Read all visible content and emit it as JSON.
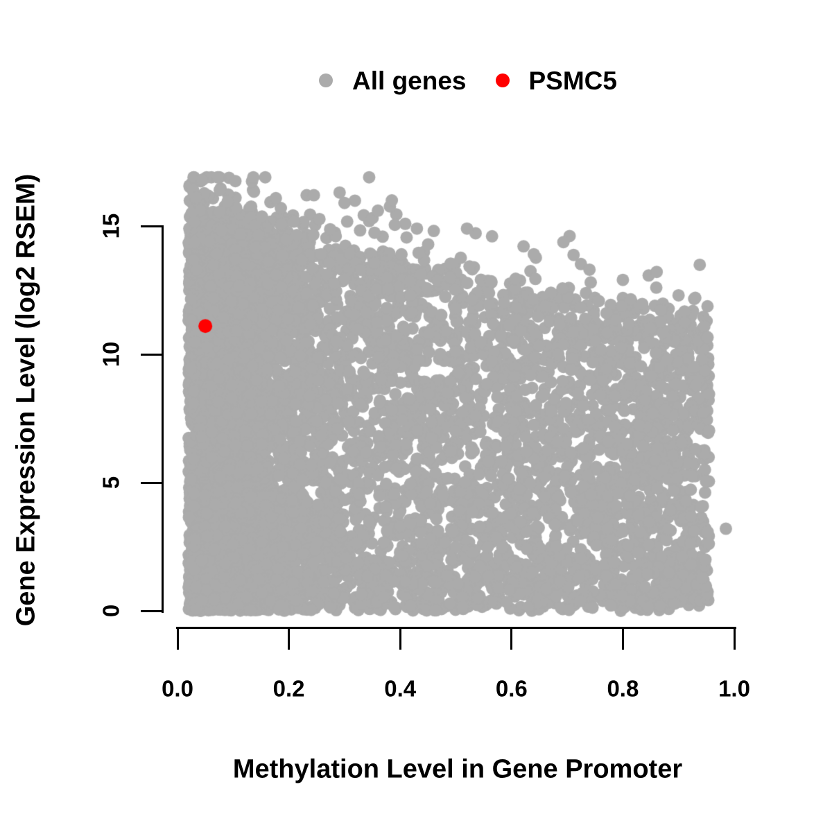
{
  "legend": {
    "items": [
      {
        "label": "All genes",
        "color": "#ababab"
      },
      {
        "label": "PSMC5",
        "color": "#ff0000"
      }
    ]
  },
  "chart_data": {
    "type": "scatter",
    "title": "",
    "xlabel": "Methylation Level in Gene Promoter",
    "ylabel": "Gene Expression Level (log2 RSEM)",
    "xlim": [
      0.0,
      1.0
    ],
    "ylim": [
      0,
      17
    ],
    "grid": false,
    "legend_position": "top-center",
    "x_ticks": {
      "values": [
        0.0,
        0.2,
        0.4,
        0.6,
        0.8,
        1.0
      ],
      "labels": [
        "0.0",
        "0.2",
        "0.4",
        "0.6",
        "0.8",
        "1.0"
      ]
    },
    "y_ticks": {
      "values": [
        0,
        5,
        10,
        15
      ],
      "labels": [
        "0",
        "5",
        "10",
        "15"
      ]
    },
    "series": [
      {
        "name": "All genes",
        "color": "#ababab",
        "marker": "filled-circle",
        "marker_radius_px": 9,
        "point_count_approx": 7200,
        "distribution": {
          "seed": 20,
          "n": 7200,
          "x_min": 0.02,
          "x_max": 0.955,
          "left_cluster_fraction": 0.45,
          "left_cluster_sigma": 0.11,
          "upper_edge_intercept": 15.35,
          "upper_edge_slope": -4.6,
          "vertical_thin_power": 0.95,
          "above_edge_fraction": 0.04,
          "above_edge_scale": 0.75,
          "bottom_band_fraction": 0.08,
          "bottom_band_sigma": 1.1,
          "y_cap": 16.9
        },
        "notable_points": [
          [
            0.044,
            16.8
          ],
          [
            0.028,
            16.4
          ],
          [
            0.076,
            16.4
          ],
          [
            0.033,
            16.1
          ],
          [
            0.232,
            16.2
          ],
          [
            0.245,
            16.2
          ],
          [
            0.3,
            15.9
          ],
          [
            0.385,
            16.0
          ],
          [
            0.36,
            15.6
          ],
          [
            0.43,
            14.9
          ],
          [
            0.52,
            14.9
          ],
          [
            0.565,
            14.6
          ],
          [
            0.64,
            13.9
          ],
          [
            0.74,
            13.3
          ],
          [
            0.8,
            12.9
          ],
          [
            0.86,
            12.6
          ],
          [
            0.9,
            12.3
          ],
          [
            0.93,
            12.2
          ],
          [
            0.985,
            3.2
          ]
        ]
      },
      {
        "name": "PSMC5",
        "color": "#ff0000",
        "marker": "filled-circle",
        "marker_radius_px": 10,
        "points": [
          [
            0.05,
            11.1
          ]
        ]
      }
    ]
  }
}
